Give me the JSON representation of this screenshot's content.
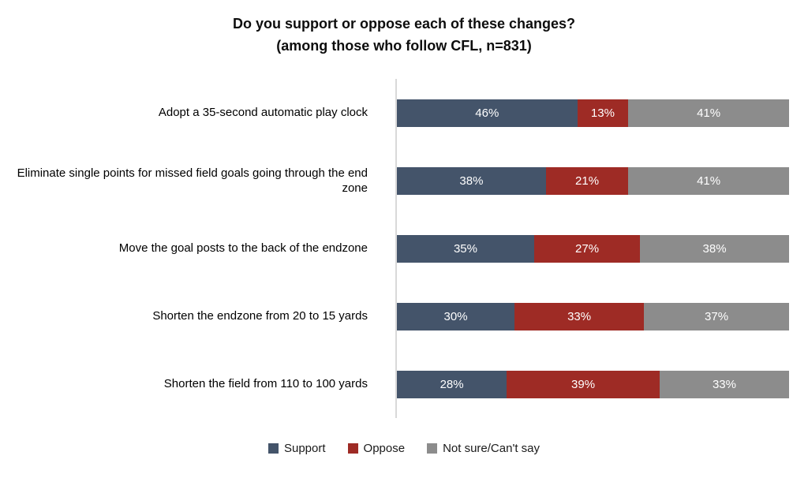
{
  "title": {
    "line1": "Do you support or oppose each of these changes?",
    "line2": "(among those who follow CFL, n=831)"
  },
  "chart_data": {
    "type": "bar",
    "orientation": "horizontal",
    "stacked": true,
    "title": "Do you support or oppose each of these changes? (among those who follow CFL, n=831)",
    "categories": [
      "Adopt a 35-second automatic play clock",
      "Eliminate single points for missed field goals going through the end zone",
      "Move the goal posts to the back of the endzone",
      "Shorten the endzone from 20 to 15 yards",
      "Shorten the field from 110 to 100 yards"
    ],
    "series": [
      {
        "name": "Support",
        "color": "#44546A",
        "values": [
          46,
          38,
          35,
          30,
          28
        ]
      },
      {
        "name": "Oppose",
        "color": "#9E2B25",
        "values": [
          13,
          21,
          27,
          33,
          39
        ]
      },
      {
        "name": "Not sure/Can't say",
        "color": "#8C8C8C",
        "values": [
          41,
          41,
          38,
          37,
          33
        ]
      }
    ],
    "value_suffix": "%",
    "xlim": [
      0,
      100
    ],
    "grid": false,
    "axis_line_color": "#D9D9D9",
    "data_label_color": "#FFFFFF",
    "legend_position": "bottom"
  }
}
